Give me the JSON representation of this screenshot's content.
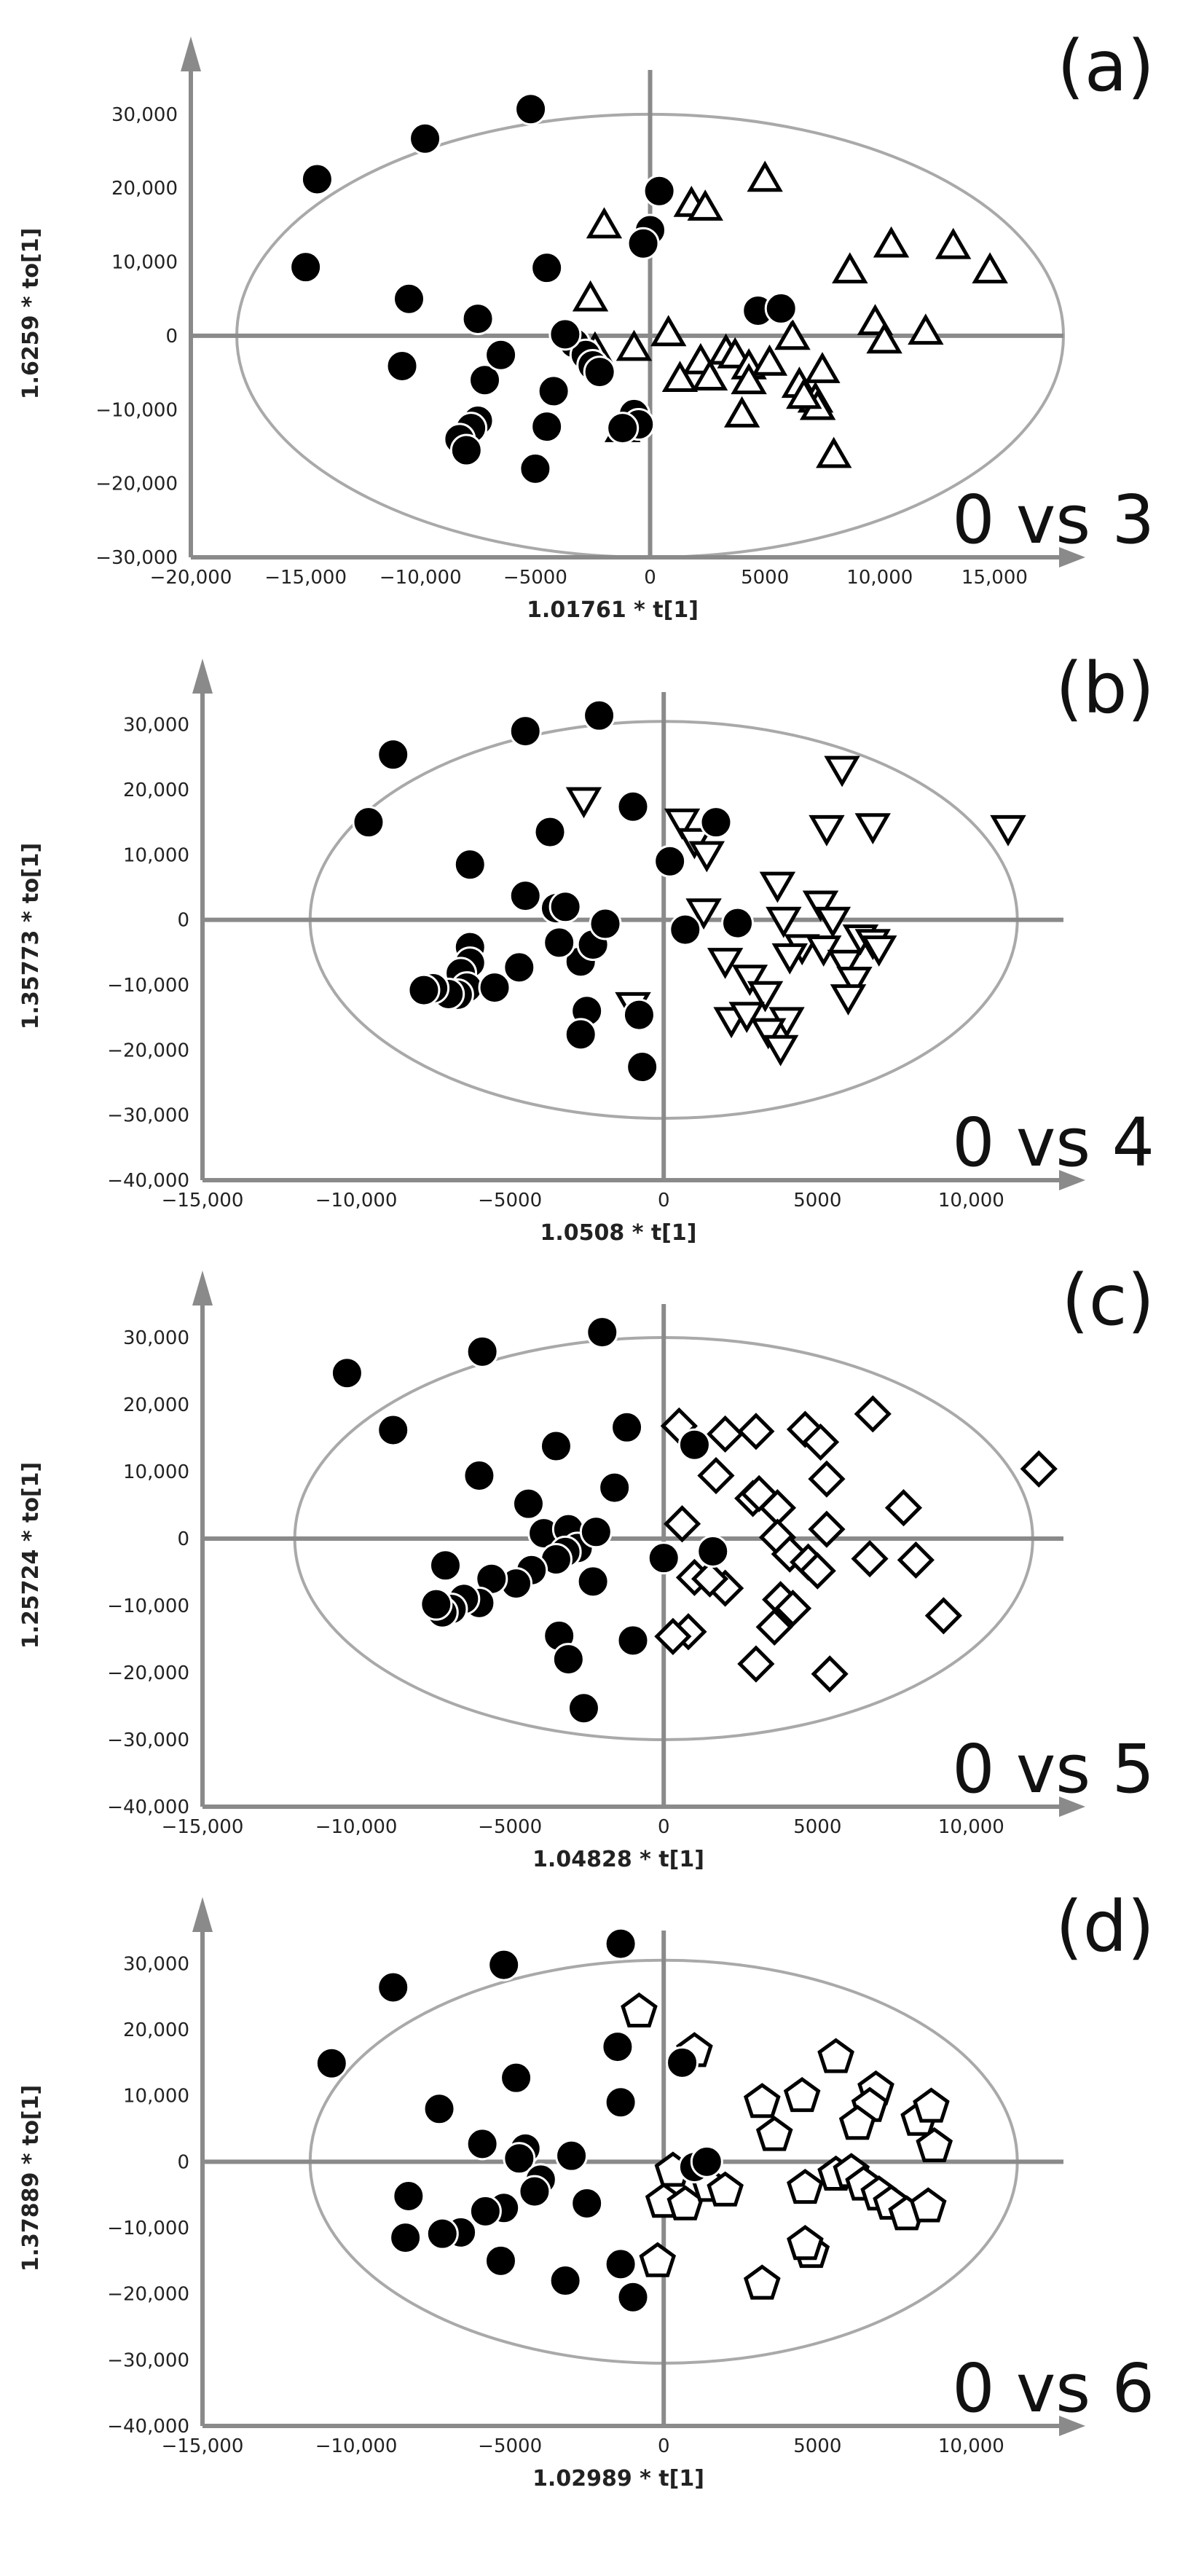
{
  "chart_data": [
    {
      "type": "scatter",
      "panel_label": "(a)",
      "comparison": "0 vs 3",
      "xlabel": "1.01761 * t[1]",
      "ylabel": "1.6259 * to[1]",
      "xlim": [
        -20000,
        18000
      ],
      "ylim": [
        -30000,
        36000
      ],
      "x_ticks": [
        -20000,
        -15000,
        -10000,
        -5000,
        0,
        5000,
        10000,
        15000
      ],
      "x_tick_labels": [
        "−20,000",
        "−15,000",
        "−10,000",
        "−5000",
        "0",
        "5000",
        "10,000",
        "15,000"
      ],
      "y_ticks": [
        -30000,
        -20000,
        -10000,
        0,
        10000,
        20000,
        30000
      ],
      "y_tick_labels": [
        "−30,000",
        "−20,000",
        "−10,000",
        "0",
        "10,000",
        "20,000",
        "30,000"
      ],
      "ellipse": {
        "rx": 18000,
        "ry": 30000
      },
      "series": [
        {
          "name": "0",
          "marker": "circle",
          "x": [
            -14500,
            -5200,
            -9800,
            -15000,
            -4500,
            -10500,
            -10800,
            -7500,
            -7200,
            -6500,
            -3300,
            -2800,
            -2500,
            -2200,
            -3700,
            -4200,
            -4500,
            -7500,
            -7800,
            -8300,
            -8000,
            -5000,
            -700,
            -500,
            400,
            0,
            -300,
            4700,
            5700,
            -1200
          ],
          "y": [
            21200,
            30700,
            26700,
            9300,
            9200,
            5000,
            -4100,
            2300,
            -6000,
            -2600,
            -1000,
            -2600,
            -4000,
            -4900,
            200,
            -7500,
            -12300,
            -11500,
            -12500,
            -14000,
            -15500,
            -18000,
            -10600,
            -12000,
            19600,
            14300,
            12500,
            3400,
            3700,
            -12500
          ]
        },
        {
          "name": "3",
          "marker": "triangle-up",
          "x": [
            5000,
            -2000,
            1800,
            2400,
            10500,
            13200,
            14800,
            8700,
            9800,
            10200,
            12000,
            7500,
            6200,
            3300,
            3700,
            4300,
            5200,
            6500,
            7200,
            7300,
            8000,
            4000,
            2200,
            1300,
            2600,
            4300,
            6700,
            -2400,
            -2600,
            -700,
            800,
            -1200
          ],
          "y": [
            20900,
            14600,
            17500,
            17000,
            12000,
            11800,
            8500,
            8500,
            1500,
            -1000,
            200,
            -5000,
            -500,
            -2500,
            -3000,
            -4500,
            -4000,
            -7000,
            -9000,
            -10000,
            -16500,
            -11000,
            -3800,
            -6200,
            -6000,
            -6500,
            -8500,
            -2200,
            4700,
            -2000,
            0,
            -13000
          ]
        }
      ]
    },
    {
      "type": "scatter",
      "panel_label": "(b)",
      "comparison": "0 vs 4",
      "xlabel": "1.0508 * t[1]",
      "ylabel": "1.35773 * to[1]",
      "xlim": [
        -15000,
        13000
      ],
      "ylim": [
        -40000,
        35000
      ],
      "x_ticks": [
        -15000,
        -10000,
        -5000,
        0,
        5000,
        10000
      ],
      "x_tick_labels": [
        "−15,000",
        "−10,000",
        "−5000",
        "0",
        "5000",
        "10,000"
      ],
      "y_ticks": [
        -40000,
        -30000,
        -20000,
        -10000,
        0,
        10000,
        20000,
        30000
      ],
      "y_tick_labels": [
        "−40,000",
        "−30,000",
        "−20,000",
        "−10,000",
        "0",
        "10,000",
        "20,000",
        "30,000"
      ],
      "ellipse": {
        "rx": 11500,
        "ry": 30500
      },
      "series": [
        {
          "name": "0",
          "marker": "circle",
          "x": [
            -8800,
            -9600,
            -4500,
            -2100,
            -6300,
            -3700,
            -4500,
            -3500,
            -3200,
            -2700,
            -2300,
            -1900,
            -6300,
            -6300,
            -6600,
            -6400,
            -6700,
            -7000,
            -7500,
            -7800,
            -5500,
            -4700,
            -2500,
            -2700,
            -800,
            -700,
            -1000,
            200,
            1700,
            700,
            2400,
            -3400
          ],
          "y": [
            25400,
            15000,
            29000,
            31400,
            8500,
            13500,
            3700,
            1800,
            2000,
            -6400,
            -3800,
            -600,
            -4200,
            -6600,
            -8200,
            -10400,
            -11500,
            -11400,
            -10500,
            -10800,
            -10400,
            -7300,
            -14000,
            -17600,
            -14600,
            -22600,
            17400,
            9000,
            15000,
            -1500,
            -500,
            -3500
          ]
        },
        {
          "name": "4",
          "marker": "triangle-down",
          "x": [
            -2600,
            600,
            1000,
            1400,
            5800,
            5300,
            6800,
            11200,
            3700,
            3900,
            4500,
            5100,
            6400,
            6800,
            7000,
            1300,
            2000,
            2800,
            3300,
            4000,
            5200,
            5900,
            6200,
            6000,
            2200,
            2700,
            3400,
            3800,
            4100,
            5500,
            -1000
          ],
          "y": [
            18800,
            15500,
            12500,
            10500,
            23600,
            14500,
            14800,
            14500,
            5800,
            400,
            -3800,
            2900,
            -2300,
            -3000,
            -4000,
            1700,
            -5900,
            -8500,
            -11000,
            -15000,
            -4000,
            -6200,
            -8800,
            -11500,
            -15000,
            -14200,
            -16700,
            -19300,
            -5200,
            400,
            -12700
          ]
        }
      ]
    },
    {
      "type": "scatter",
      "panel_label": "(c)",
      "comparison": "0 vs 5",
      "xlabel": "1.04828 * t[1]",
      "ylabel": "1.25724 * to[1]",
      "xlim": [
        -15000,
        13000
      ],
      "ylim": [
        -40000,
        35000
      ],
      "x_ticks": [
        -15000,
        -10000,
        -5000,
        0,
        5000,
        10000
      ],
      "x_tick_labels": [
        "−15,000",
        "−10,000",
        "−5000",
        "0",
        "5000",
        "10,000"
      ],
      "y_ticks": [
        -40000,
        -30000,
        -20000,
        -10000,
        0,
        10000,
        20000,
        30000
      ],
      "y_tick_labels": [
        "−40,000",
        "−30,000",
        "−20,000",
        "−10,000",
        "0",
        "10,000",
        "20,000",
        "30,000"
      ],
      "ellipse": {
        "rx": 12000,
        "ry": 30000
      },
      "series": [
        {
          "name": "0",
          "marker": "circle",
          "x": [
            -10300,
            -8800,
            -5900,
            -2000,
            -6000,
            -3500,
            -4400,
            -3900,
            -3100,
            -2800,
            -2300,
            -3200,
            -3500,
            -4300,
            -4800,
            -5600,
            -6000,
            -6500,
            -6900,
            -7200,
            -7400,
            -7100,
            -3400,
            -3100,
            -2600,
            -1000,
            -1200,
            -2200,
            -1600,
            1000,
            0,
            1600
          ],
          "y": [
            24700,
            16200,
            27900,
            30800,
            9400,
            13800,
            5200,
            800,
            1400,
            -1400,
            -6400,
            -2000,
            -3100,
            -4700,
            -6700,
            -6000,
            -9600,
            -9000,
            -10500,
            -11000,
            -9800,
            -4000,
            -14500,
            -18000,
            -25300,
            -15200,
            16600,
            1000,
            7600,
            14000,
            -2900,
            -1900
          ]
        },
        {
          "name": "5",
          "marker": "diamond",
          "x": [
            500,
            2000,
            3000,
            4600,
            5100,
            6800,
            12200,
            1700,
            2900,
            3700,
            5300,
            7800,
            8200,
            9100,
            600,
            1000,
            2000,
            3100,
            3700,
            4100,
            4700,
            5000,
            5300,
            6700,
            800,
            300,
            3000,
            3600,
            3800,
            4200,
            5400,
            1500
          ],
          "y": [
            16800,
            15600,
            16000,
            16300,
            14400,
            18600,
            10400,
            9400,
            6000,
            4600,
            8900,
            4600,
            -3200,
            -11500,
            2200,
            -5800,
            -7400,
            6700,
            200,
            -2300,
            -3500,
            -4800,
            1400,
            -3000,
            -13900,
            -14600,
            -18700,
            -13200,
            -9100,
            -10400,
            -20200,
            -6000
          ]
        }
      ]
    },
    {
      "type": "scatter",
      "panel_label": "(d)",
      "comparison": "0 vs 6",
      "xlabel": "1.02989 * t[1]",
      "ylabel": "1.37889 * to[1]",
      "xlim": [
        -15000,
        13000
      ],
      "ylim": [
        -40000,
        35000
      ],
      "x_ticks": [
        -15000,
        -10000,
        -5000,
        0,
        5000,
        10000
      ],
      "x_tick_labels": [
        "−15,000",
        "−10,000",
        "−5000",
        "0",
        "5000",
        "10,000"
      ],
      "y_ticks": [
        -40000,
        -30000,
        -20000,
        -10000,
        0,
        10000,
        20000,
        30000
      ],
      "y_tick_labels": [
        "−40,000",
        "−30,000",
        "−20,000",
        "−10,000",
        "0",
        "10,000",
        "20,000",
        "30,000"
      ],
      "ellipse": {
        "rx": 11500,
        "ry": 30500
      },
      "series": [
        {
          "name": "0",
          "marker": "circle",
          "x": [
            -8800,
            -5200,
            -1400,
            -10800,
            -7300,
            -4800,
            -1500,
            -1400,
            -5900,
            -4500,
            -4700,
            -3000,
            -4000,
            -4200,
            -5200,
            -5800,
            -6600,
            -7200,
            -8300,
            -8400,
            -5300,
            -3200,
            -2500,
            -1400,
            -1000,
            600,
            1000,
            1400
          ],
          "y": [
            26400,
            29800,
            33000,
            14900,
            8000,
            12700,
            17400,
            9000,
            2700,
            2000,
            500,
            900,
            -2700,
            -4500,
            -7000,
            -7500,
            -10700,
            -10900,
            -5200,
            -11500,
            -15000,
            -18000,
            -6300,
            -15500,
            -20500,
            15000,
            -800,
            0
          ]
        },
        {
          "name": "6",
          "marker": "pentagon",
          "x": [
            -800,
            1000,
            5600,
            3200,
            4500,
            6900,
            6700,
            6300,
            8300,
            8700,
            8800,
            3600,
            300,
            0,
            700,
            1500,
            2000,
            4600,
            5600,
            6100,
            6500,
            7000,
            7400,
            7900,
            8600,
            -200,
            3200,
            4800,
            4600
          ],
          "y": [
            22700,
            16700,
            15800,
            9000,
            9900,
            10900,
            8400,
            5700,
            6300,
            8300,
            2300,
            4000,
            -1400,
            -6100,
            -6500,
            -3700,
            -4400,
            -4000,
            -2000,
            -1600,
            -3500,
            -5000,
            -6400,
            -8000,
            -6800,
            -15100,
            -18500,
            -13700,
            -12500
          ]
        }
      ]
    }
  ]
}
